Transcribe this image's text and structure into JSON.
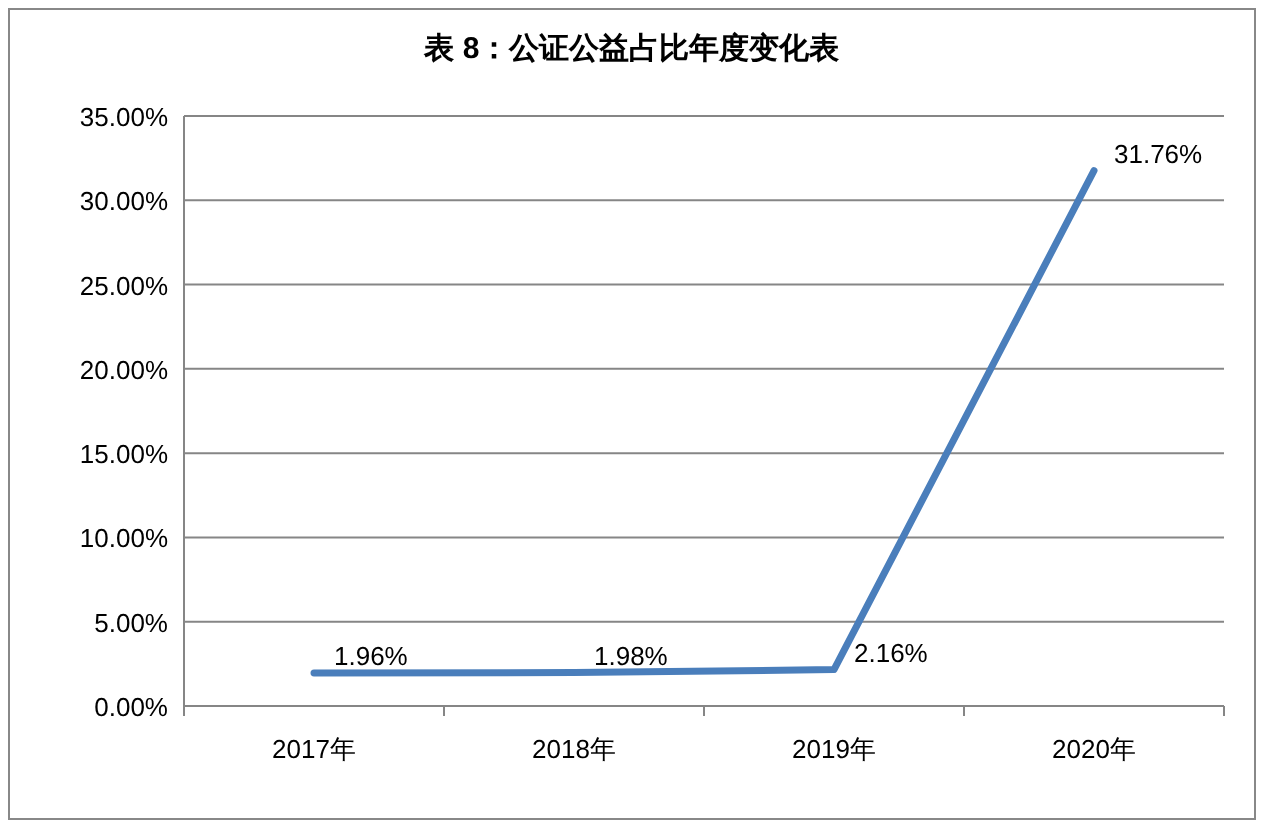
{
  "chart_data": {
    "type": "line",
    "title": "表 8：公证公益占比年度变化表",
    "categories": [
      "2017年",
      "2018年",
      "2019年",
      "2020年"
    ],
    "series": [
      {
        "color": "#4a7ebb",
        "values": [
          1.96,
          1.98,
          2.16,
          31.76
        ],
        "value_labels": [
          "1.96%",
          "1.98%",
          "2.16%",
          "31.76%"
        ]
      }
    ],
    "ylim": [
      0,
      35
    ],
    "yticks": [
      {
        "value": 0,
        "label": "0.00%"
      },
      {
        "value": 5,
        "label": "5.00%"
      },
      {
        "value": 10,
        "label": "10.00%"
      },
      {
        "value": 15,
        "label": "15.00%"
      },
      {
        "value": 20,
        "label": "20.00%"
      },
      {
        "value": 25,
        "label": "25.00%"
      },
      {
        "value": 30,
        "label": "30.00%"
      },
      {
        "value": 35,
        "label": "35.00%"
      }
    ],
    "grid": "y",
    "marker": "none",
    "line_style": "solid"
  }
}
